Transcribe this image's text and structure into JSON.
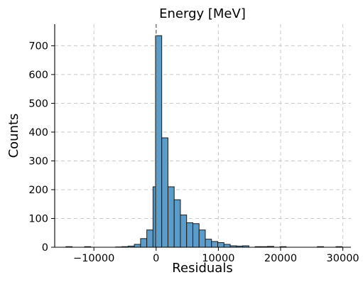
{
  "chart_data": {
    "type": "bar",
    "title": "Energy [MeV]",
    "xlabel": "Residuals",
    "ylabel": "Counts",
    "xlim": [
      -16300,
      31300
    ],
    "ylim": [
      0,
      775
    ],
    "xticks": [
      -10000,
      0,
      10000,
      20000,
      30000
    ],
    "xtick_labels": [
      "−10000",
      "0",
      "10000",
      "20000",
      "30000"
    ],
    "yticks": [
      0,
      100,
      200,
      300,
      400,
      500,
      600,
      700
    ],
    "ytick_labels": [
      "0",
      "100",
      "200",
      "300",
      "400",
      "500",
      "600",
      "700"
    ],
    "bin_width": 1000,
    "bins": [
      {
        "left": -14500,
        "count": 2
      },
      {
        "left": -11500,
        "count": 2
      },
      {
        "left": -6500,
        "count": 1
      },
      {
        "left": -5500,
        "count": 2
      },
      {
        "left": -4500,
        "count": 4
      },
      {
        "left": -3500,
        "count": 10
      },
      {
        "left": -2500,
        "count": 30
      },
      {
        "left": -1500,
        "count": 60
      },
      {
        "left": -500,
        "count": 210
      },
      {
        "left": -100,
        "count": 735
      },
      {
        "left": 900,
        "count": 380
      },
      {
        "left": 1900,
        "count": 210
      },
      {
        "left": 2900,
        "count": 165
      },
      {
        "left": 3900,
        "count": 112
      },
      {
        "left": 4900,
        "count": 85
      },
      {
        "left": 5900,
        "count": 82
      },
      {
        "left": 6900,
        "count": 60
      },
      {
        "left": 7900,
        "count": 28
      },
      {
        "left": 8900,
        "count": 20
      },
      {
        "left": 9900,
        "count": 16
      },
      {
        "left": 10900,
        "count": 10
      },
      {
        "left": 11900,
        "count": 5
      },
      {
        "left": 12900,
        "count": 4
      },
      {
        "left": 13900,
        "count": 5
      },
      {
        "left": 15900,
        "count": 2
      },
      {
        "left": 16900,
        "count": 2
      },
      {
        "left": 17900,
        "count": 3
      },
      {
        "left": 19900,
        "count": 2
      },
      {
        "left": 25900,
        "count": 2
      },
      {
        "left": 28900,
        "count": 2
      }
    ],
    "reference_line_x": 0,
    "grid": true,
    "colors": {
      "bar_fill": "#5d9cc8",
      "bar_edge": "#1a1a1a",
      "grid": "#c8c8c8",
      "reference_line": "#6e6e6e"
    }
  }
}
